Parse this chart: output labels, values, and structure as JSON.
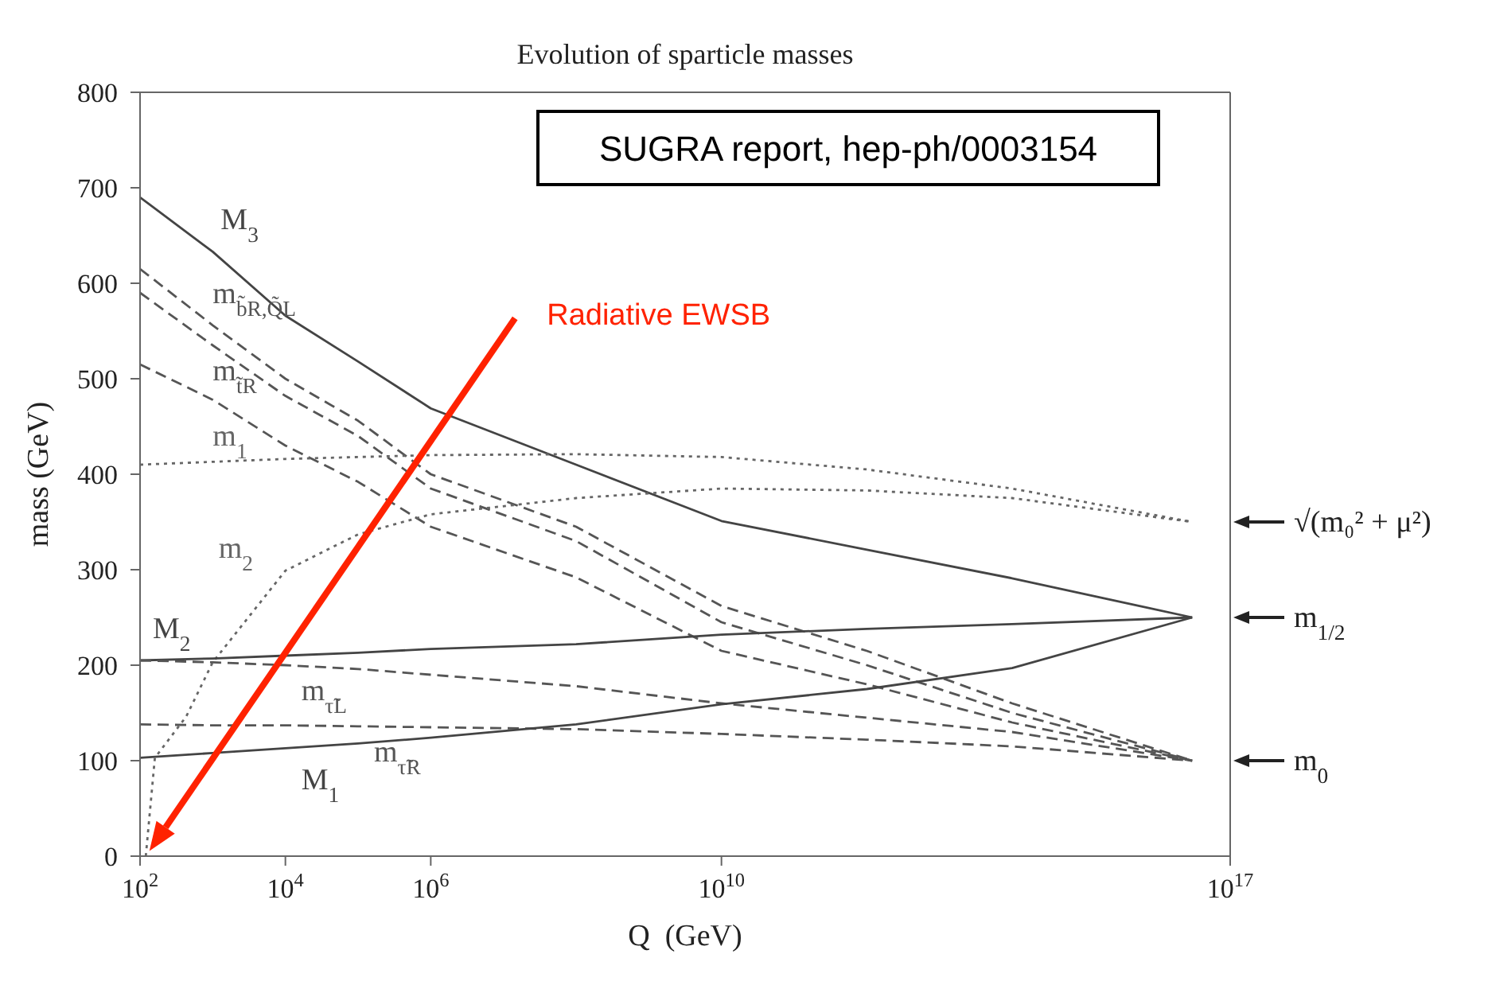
{
  "chart_data": {
    "type": "line",
    "title": "Evolution of sparticle masses",
    "xlabel": "Q  (GeV)",
    "ylabel": "mass (GeV)",
    "log": "x",
    "grid": false,
    "legend": false,
    "marker": "none",
    "x": [
      100.0,
      1000.0,
      10000.0,
      100000.0,
      1000000.0,
      100000000.0,
      10000000000.0,
      1000000000000.0,
      100000000000000.0,
      3e+16
    ],
    "xlim": [
      100.0,
      1e+17
    ],
    "xticks": [
      {
        "value": 100.0,
        "label": "10$^{2}$"
      },
      {
        "value": 10000.0,
        "label": "10$^{4}$"
      },
      {
        "value": 1000000.0,
        "label": "10$^{6}$"
      },
      {
        "value": 10000000000.0,
        "label": "10$^{10}$"
      },
      {
        "value": 1e+17,
        "label": "10$^{17}$"
      }
    ],
    "ylim": [
      0,
      800
    ],
    "yticks": [
      0,
      100,
      200,
      300,
      400,
      500,
      600,
      700,
      800
    ],
    "series": [
      {
        "name": "M$_{3}$",
        "color": "#444444",
        "line_style": "solid",
        "values": [
          690,
          633,
          566,
          518,
          469,
          410,
          351,
          321,
          291,
          250
        ]
      },
      {
        "name": "m$_{b̃R,Q̃L}$",
        "color": "#555555",
        "line_style": "dashed",
        "values": [
          615,
          556,
          500,
          456,
          400,
          345,
          262,
          215,
          160,
          100
        ]
      },
      {
        "color": "#555555",
        "line_style": "dashed",
        "values": [
          590,
          535,
          482,
          440,
          385,
          330,
          245,
          200,
          150,
          100
        ]
      },
      {
        "name": "m$_{t̃R}$",
        "color": "#555555",
        "line_style": "dashed",
        "values": [
          515,
          478,
          430,
          392,
          345,
          292,
          215,
          180,
          140,
          100
        ]
      },
      {
        "name": "m$_{1}$",
        "color": "#666666",
        "line_style": "dotted",
        "values": [
          410,
          413,
          416,
          418,
          420,
          421,
          418,
          405,
          385,
          350
        ]
      },
      {
        "name": "m$_{2}$",
        "color": "#666666",
        "line_style": "dotted",
        "x": [
          120,
          160,
          430,
          1000.0,
          10000.0,
          100000.0,
          1000000.0,
          100000000.0,
          10000000000.0,
          1000000000000.0,
          100000000000000.0,
          3e+16
        ],
        "values": [
          0,
          103,
          146,
          203,
          299,
          337,
          358,
          375,
          385,
          383,
          375,
          350
        ]
      },
      {
        "name": "M$_{2}$",
        "color": "#444444",
        "line_style": "solid",
        "values": [
          205,
          207,
          210,
          213,
          217,
          222,
          232,
          238,
          243,
          250
        ]
      },
      {
        "name": "m$_{τ̃L}$",
        "color": "#555555",
        "line_style": "dashed",
        "values": [
          205,
          203,
          200,
          196,
          190,
          178,
          160,
          145,
          130,
          100
        ]
      },
      {
        "name": "m$_{τ̃R}$",
        "color": "#555555",
        "line_style": "dashed",
        "values": [
          138,
          137,
          137,
          136,
          135,
          133,
          128,
          122,
          115,
          100
        ]
      },
      {
        "name": "M$_{1}$",
        "color": "#444444",
        "line_style": "solid",
        "values": [
          103,
          108,
          113,
          118,
          124,
          138,
          159,
          175,
          197,
          250
        ]
      }
    ],
    "annotations": [
      "SUGRA report, hep-ph/0003154",
      "Radiative EWSB",
      "√(m₀² + μ²)",
      "m$_{1/2}$",
      "m$_{0}$"
    ]
  }
}
